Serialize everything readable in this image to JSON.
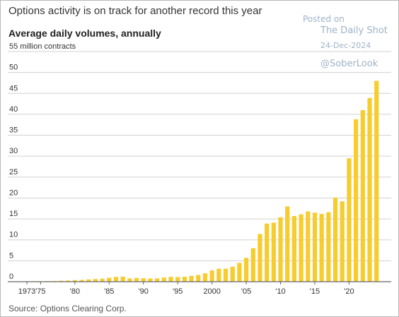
{
  "header": {
    "title": "Options activity is on track for another record this year",
    "subtitle": "Average daily volumes, annually"
  },
  "watermark": {
    "posted": "Posted on",
    "site": "The Daily Shot",
    "date": "24-Dec-2024",
    "handle": "@SoberLook"
  },
  "footer": {
    "source": "Source: Options Clearing Corp."
  },
  "colors": {
    "bar": "#f7cc2f",
    "grid": "#d0d0d0",
    "axis": "#666666"
  },
  "chart_data": {
    "type": "bar",
    "title": "Options activity is on track for another record this year",
    "subtitle": "Average daily volumes, annually",
    "ylabel": "55 million contracts",
    "top_tick_label": "55 million contracts",
    "ylim": [
      0,
      55
    ],
    "yticks": [
      0,
      5,
      10,
      15,
      20,
      25,
      30,
      35,
      40,
      45,
      50,
      55
    ],
    "grid": true,
    "x_tick_labels": [
      {
        "year": 1973,
        "label": "1973"
      },
      {
        "year": 1975,
        "label": "'75"
      },
      {
        "year": 1980,
        "label": "'80"
      },
      {
        "year": 1985,
        "label": "'85"
      },
      {
        "year": 1990,
        "label": "'90"
      },
      {
        "year": 1995,
        "label": "'95"
      },
      {
        "year": 2000,
        "label": "2000"
      },
      {
        "year": 2005,
        "label": "'05"
      },
      {
        "year": 2010,
        "label": "'10"
      },
      {
        "year": 2015,
        "label": "'15"
      },
      {
        "year": 2020,
        "label": "'20"
      }
    ],
    "categories": [
      1973,
      1974,
      1975,
      1976,
      1977,
      1978,
      1979,
      1980,
      1981,
      1982,
      1983,
      1984,
      1985,
      1986,
      1987,
      1988,
      1989,
      1990,
      1991,
      1992,
      1993,
      1994,
      1995,
      1996,
      1997,
      1998,
      1999,
      2000,
      2001,
      2002,
      2003,
      2004,
      2005,
      2006,
      2007,
      2008,
      2009,
      2010,
      2011,
      2012,
      2013,
      2014,
      2015,
      2016,
      2017,
      2018,
      2019,
      2020,
      2021,
      2022,
      2023,
      2024
    ],
    "values": [
      0.01,
      0.02,
      0.07,
      0.13,
      0.16,
      0.23,
      0.26,
      0.38,
      0.43,
      0.54,
      0.64,
      0.72,
      0.94,
      1.14,
      1.21,
      0.77,
      0.9,
      0.83,
      0.78,
      0.79,
      1.0,
      1.17,
      1.1,
      1.2,
      1.4,
      1.6,
      2.0,
      2.7,
      3.1,
      3.1,
      3.6,
      4.5,
      5.7,
      8.0,
      11.4,
      13.9,
      14.1,
      15.4,
      18.0,
      15.7,
      16.1,
      16.8,
      16.5,
      16.2,
      16.6,
      20.1,
      19.2,
      29.5,
      38.8,
      41.0,
      43.9,
      48.0
    ]
  }
}
